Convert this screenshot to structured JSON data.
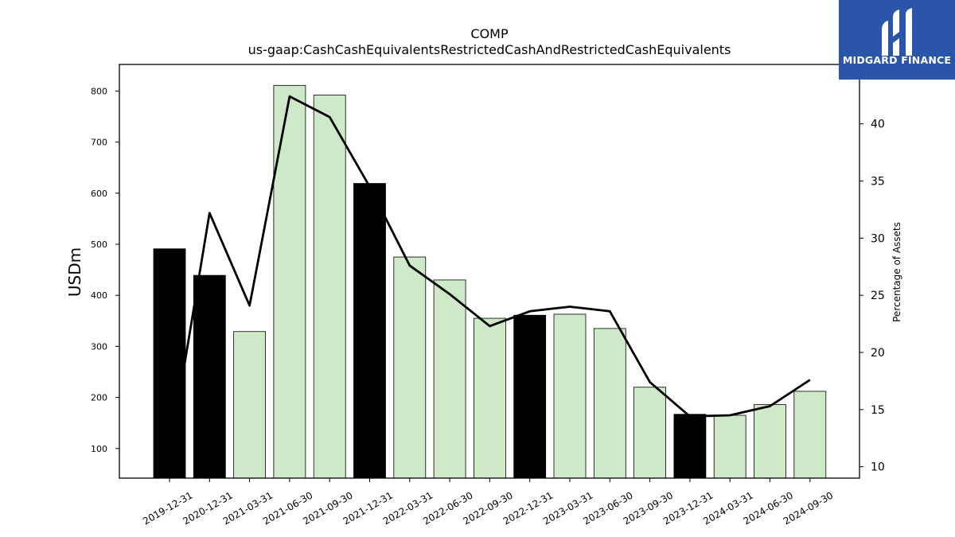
{
  "chart_data": {
    "type": "bar",
    "title": "COMP",
    "subtitle": "us-gaap:CashCashEquivalentsRestrictedCashAndRestrictedCashEquivalents",
    "ylabel": "USDm",
    "y2label": "Percentage of Assets",
    "categories": [
      "2019-12-31",
      "2020-12-31",
      "2021-03-31",
      "2021-06-30",
      "2021-09-30",
      "2021-12-31",
      "2022-03-31",
      "2022-06-30",
      "2022-09-30",
      "2022-12-31",
      "2023-03-31",
      "2023-06-30",
      "2023-09-30",
      "2023-12-31",
      "2024-03-31",
      "2024-06-30",
      "2024-09-30"
    ],
    "series": [
      {
        "values": [
          491,
          439,
          329,
          811,
          792,
          619,
          475,
          430,
          355,
          361,
          363,
          335,
          220,
          167,
          165,
          186,
          212
        ],
        "is_year_end": [
          true,
          true,
          false,
          false,
          false,
          true,
          false,
          false,
          false,
          true,
          false,
          false,
          false,
          true,
          false,
          false,
          false
        ],
        "color_year_end": "#000000",
        "color_quarter": "#cde9c8",
        "axis": "left"
      },
      {
        "values": [
          11.0,
          32.2,
          24.1,
          42.4,
          40.6,
          34.5,
          27.6,
          25.1,
          22.3,
          23.6,
          24.0,
          23.6,
          17.4,
          14.4,
          14.5,
          15.3,
          17.6
        ],
        "color": "#000000",
        "axis": "right"
      }
    ],
    "ylim": [
      42,
      852
    ],
    "y2lim": [
      9.0,
      45.2
    ],
    "yticks": [
      100,
      200,
      300,
      400,
      500,
      600,
      700,
      800
    ],
    "y2ticks": [
      10,
      15,
      20,
      25,
      30,
      35,
      40
    ],
    "grid": false,
    "legend": "none"
  },
  "brand": {
    "name": "MIDGARD FINANCE",
    "background": "#2a55a8",
    "text_color": "#ffffff"
  }
}
